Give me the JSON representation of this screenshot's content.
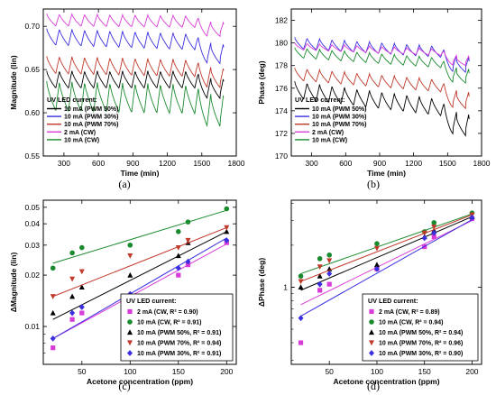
{
  "chart_data": [
    {
      "panel": "a",
      "type": "line",
      "caption": "(a)",
      "xlabel": "Time (min)",
      "ylabel": "Magnitude (lin)",
      "xlim": [
        120,
        1800
      ],
      "ylim": [
        0.55,
        0.72
      ],
      "xticks": [
        "300",
        "600",
        "900",
        "1200",
        "1500",
        "1800"
      ],
      "xtick_values": [
        300,
        600,
        900,
        1200,
        1500,
        1800
      ],
      "yticks": [
        "0.55",
        "0.60",
        "0.65",
        "0.70"
      ],
      "ytick_values": [
        0.55,
        0.6,
        0.65,
        0.7
      ],
      "legend_title": "UV LED current:",
      "legend_position": "bottom-left",
      "series": [
        {
          "name": "10 mA (PWM 50%)",
          "color": "#000000",
          "base": 0.6485,
          "amp": 0.02,
          "slope": -0.0,
          "drop_at": 1450,
          "drop": 0.012
        },
        {
          "name": "10 mA (PWM 30%)",
          "color": "#3b2fe0",
          "base": 0.6975,
          "amp": 0.019,
          "slope": -4.5e-06,
          "drop_at": 1450,
          "drop": 0.015
        },
        {
          "name": "10 mA (PWM 70%)",
          "color": "#c0392b",
          "base": 0.6655,
          "amp": 0.02,
          "slope": -3e-06,
          "drop_at": 1450,
          "drop": 0.012
        },
        {
          "name": "2 mA (CW)",
          "color": "#d83cd8",
          "base": 0.7145,
          "amp": 0.014,
          "slope": -1.5e-06,
          "drop_at": 1450,
          "drop": 0.01
        },
        {
          "name": "10 mA (CW)",
          "color": "#1a8a2e",
          "base": 0.6365,
          "amp": 0.034,
          "slope": -3e-06,
          "drop_at": 1450,
          "drop": 0.014
        }
      ],
      "x_start": 150,
      "x_end": 1690,
      "period": 110
    },
    {
      "panel": "b",
      "type": "line",
      "caption": "(b)",
      "xlabel": "Time (min)",
      "ylabel": "Phase (deg)",
      "xlim": [
        120,
        1800
      ],
      "ylim": [
        170,
        183
      ],
      "xticks": [
        "300",
        "600",
        "900",
        "1200",
        "1500",
        "1800"
      ],
      "xtick_values": [
        300,
        600,
        900,
        1200,
        1500,
        1800
      ],
      "yticks": [
        "170",
        "172",
        "174",
        "176",
        "178",
        "180",
        "182"
      ],
      "ytick_values": [
        170,
        172,
        174,
        176,
        178,
        180,
        182
      ],
      "legend_title": "UV LED current:",
      "legend_position": "bottom-left",
      "series": [
        {
          "name": "10 mA (PWM 50%)",
          "color": "#000000",
          "base": 176.6,
          "amp": 1.5,
          "slope": -0.0012,
          "drop_at": 1450,
          "drop": 1.5
        },
        {
          "name": "10 mA (PWM 30%)",
          "color": "#3b2fe0",
          "base": 180.5,
          "amp": 1.0,
          "slope": -0.0006,
          "drop_at": 1450,
          "drop": 1.2
        },
        {
          "name": "10 mA (PWM 70%)",
          "color": "#c0392b",
          "base": 177.8,
          "amp": 1.1,
          "slope": -0.0008,
          "drop_at": 1450,
          "drop": 1.3
        },
        {
          "name": "2 mA (CW)",
          "color": "#d83cd8",
          "base": 180.0,
          "amp": 0.6,
          "slope": -0.0004,
          "drop_at": 1450,
          "drop": 0.8
        },
        {
          "name": "10 mA (CW)",
          "color": "#1a8a2e",
          "base": 179.6,
          "amp": 0.9,
          "slope": -0.0007,
          "drop_at": 1450,
          "drop": 1.2
        }
      ],
      "x_start": 150,
      "x_end": 1690,
      "period": 110
    },
    {
      "panel": "c",
      "type": "scatter",
      "caption": "(c)",
      "xlabel": "Acetone concentration (ppm)",
      "ylabel": "ΔMagnitude (lin)",
      "xscale": "linear",
      "yscale": "log",
      "xlim": [
        10,
        210
      ],
      "ylim": [
        0.006,
        0.055
      ],
      "xticks": [
        "50",
        "100",
        "150",
        "200"
      ],
      "xtick_values": [
        50,
        100,
        150,
        200
      ],
      "yticks": [
        "0.01",
        "0.02",
        "0.03",
        "0.04",
        "0.05"
      ],
      "ytick_values": [
        0.01,
        0.02,
        0.03,
        0.04,
        0.05
      ],
      "legend_title": "UV LED current:",
      "legend_position": "bottom-right",
      "series": [
        {
          "name": "2 mA (CW, R² = 0.90)",
          "color": "#d83cd8",
          "marker": "square",
          "x": [
            20,
            40,
            50,
            100,
            150,
            160,
            200
          ],
          "y": [
            0.0075,
            0.011,
            0.012,
            0.014,
            0.02,
            0.023,
            0.031
          ],
          "fit": [
            [
              20,
              0.0085
            ],
            [
              200,
              0.0305
            ]
          ]
        },
        {
          "name": "10 mA (CW, R² = 0.91)",
          "color": "#1a8a2e",
          "marker": "circle",
          "x": [
            20,
            40,
            50,
            100,
            150,
            160,
            200
          ],
          "y": [
            0.022,
            0.027,
            0.029,
            0.03,
            0.036,
            0.041,
            0.049
          ],
          "fit": [
            [
              20,
              0.0235
            ],
            [
              200,
              0.048
            ]
          ]
        },
        {
          "name": "10 mA (PWM 50%, R² = 0.91)",
          "color": "#000000",
          "marker": "triangle-up",
          "x": [
            20,
            40,
            50,
            100,
            150,
            160,
            200
          ],
          "y": [
            0.012,
            0.015,
            0.017,
            0.02,
            0.026,
            0.031,
            0.036
          ],
          "fit": [
            [
              20,
              0.011
            ],
            [
              200,
              0.036
            ]
          ]
        },
        {
          "name": "10 mA (PWM 70%, R² = 0.94)",
          "color": "#c0392b",
          "marker": "triangle-down",
          "x": [
            20,
            40,
            50,
            100,
            150,
            160,
            200
          ],
          "y": [
            0.015,
            0.019,
            0.021,
            0.026,
            0.029,
            0.032,
            0.038
          ],
          "fit": [
            [
              20,
              0.015
            ],
            [
              200,
              0.038
            ]
          ]
        },
        {
          "name": "10 mA (PWM 30%, R² = 0.91)",
          "color": "#3b2fe0",
          "marker": "diamond",
          "x": [
            20,
            40,
            50,
            100,
            150,
            160,
            200
          ],
          "y": [
            0.0085,
            0.012,
            0.013,
            0.0155,
            0.022,
            0.024,
            0.032
          ],
          "fit": [
            [
              20,
              0.0085
            ],
            [
              200,
              0.033
            ]
          ]
        }
      ]
    },
    {
      "panel": "d",
      "type": "scatter",
      "caption": "(d)",
      "xlabel": "Acetone concentration (ppm)",
      "ylabel": "ΔPhase (deg)",
      "xscale": "linear",
      "yscale": "log",
      "xlim": [
        10,
        210
      ],
      "ylim": [
        0.28,
        4.2
      ],
      "xticks": [
        "50",
        "100",
        "150",
        "200"
      ],
      "xtick_values": [
        50,
        100,
        150,
        200
      ],
      "yticks": [
        "1"
      ],
      "ytick_values": [
        1
      ],
      "legend_title": "UV LED current:",
      "legend_position": "bottom-right",
      "series": [
        {
          "name": "2 mA (CW, R² = 0.89)",
          "color": "#d83cd8",
          "marker": "square",
          "x": [
            20,
            40,
            50,
            100,
            150,
            160,
            200
          ],
          "y": [
            0.4,
            0.95,
            1.05,
            1.35,
            1.95,
            2.3,
            3.1
          ],
          "fit": [
            [
              20,
              0.75
            ],
            [
              200,
              3.0
            ]
          ]
        },
        {
          "name": "10 mA (CW, R² = 0.94)",
          "color": "#1a8a2e",
          "marker": "circle",
          "x": [
            20,
            40,
            50,
            100,
            150,
            160,
            200
          ],
          "y": [
            1.2,
            1.6,
            1.7,
            2.05,
            2.5,
            2.9,
            3.4
          ],
          "fit": [
            [
              20,
              1.25
            ],
            [
              200,
              3.35
            ]
          ]
        },
        {
          "name": "10 mA (PWM 50%, R² = 0.94)",
          "color": "#000000",
          "marker": "triangle-up",
          "x": [
            20,
            40,
            50,
            100,
            150,
            160,
            200
          ],
          "y": [
            1.0,
            1.2,
            1.35,
            1.45,
            2.3,
            2.55,
            3.2
          ],
          "fit": [
            [
              20,
              0.95
            ],
            [
              200,
              3.2
            ]
          ]
        },
        {
          "name": "10 mA (PWM 70%, R² = 0.96)",
          "color": "#c0392b",
          "marker": "triangle-down",
          "x": [
            20,
            40,
            50,
            100,
            150,
            160,
            200
          ],
          "y": [
            1.1,
            1.4,
            1.55,
            1.9,
            2.45,
            2.7,
            3.3
          ],
          "fit": [
            [
              20,
              1.1
            ],
            [
              200,
              3.3
            ]
          ]
        },
        {
          "name": "10 mA (PWM 30%, R² = 0.90)",
          "color": "#3b2fe0",
          "marker": "diamond",
          "x": [
            20,
            40,
            50,
            100,
            150,
            160,
            200
          ],
          "y": [
            0.6,
            1.05,
            1.25,
            1.35,
            2.25,
            2.45,
            3.15
          ],
          "fit": [
            [
              20,
              0.62
            ],
            [
              200,
              3.05
            ]
          ]
        }
      ]
    }
  ]
}
